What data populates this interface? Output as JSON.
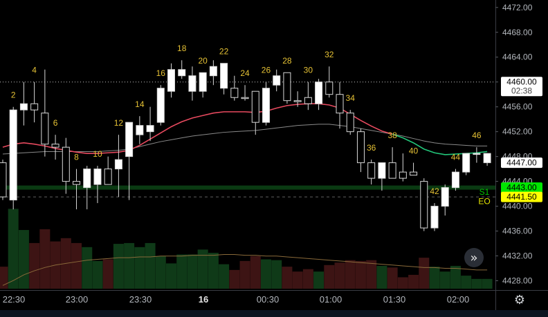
{
  "chart_data": {
    "type": "candlestick",
    "price_scale": {
      "ticks": [
        "4472.00",
        "4468.00",
        "4464.00",
        "4460.00",
        "4456.00",
        "4452.00",
        "4448.00",
        "4444.00",
        "4440.00",
        "4436.00",
        "4432.00",
        "4428.00"
      ],
      "range": [
        4426.5,
        4473.2
      ]
    },
    "time_axis": {
      "labels": [
        "22:30",
        "23:00",
        "23:30",
        "16",
        "00:30",
        "01:00",
        "01:30",
        "02:00"
      ],
      "bold_label": "16"
    },
    "price_badges": [
      {
        "value": "4460.00",
        "sub": "02:38",
        "color": "#ffffff",
        "text": "#000000"
      },
      {
        "value": "4447.00",
        "color": "#ffffff",
        "text": "#000000"
      },
      {
        "value": "4443.00",
        "color": "#00e600",
        "text": "#000000"
      },
      {
        "value": "4441.50",
        "color": "#ffff00",
        "text": "#000000"
      }
    ],
    "level_labels": [
      {
        "text": "S1",
        "color": "#00c800",
        "price": 4442.3
      },
      {
        "text": "EO",
        "color": "#e6e600",
        "price": 4440.8
      }
    ],
    "horizontal_lines": [
      {
        "price": 4460.0,
        "style": "dotted",
        "color": "#ffffff"
      },
      {
        "price": 4443.0,
        "style": "band",
        "color": "#0a3a12"
      },
      {
        "price": 4441.5,
        "style": "dashed",
        "color": "#777777"
      }
    ],
    "candles": [
      {
        "n": 1,
        "o": 4441.5,
        "h": 4447.5,
        "l": 4441.0,
        "c": 4447.0,
        "dir": "down"
      },
      {
        "n": 2,
        "o": 4441.0,
        "h": 4456.0,
        "l": 4439.5,
        "c": 4455.5,
        "dir": "up"
      },
      {
        "n": 3,
        "o": 4455.5,
        "h": 4460.0,
        "l": 4453.0,
        "c": 4456.5,
        "dir": "up"
      },
      {
        "n": 4,
        "o": 4456.5,
        "h": 4460.0,
        "l": 4453.5,
        "c": 4455.5,
        "dir": "down"
      },
      {
        "n": 5,
        "o": 4455.0,
        "h": 4462.0,
        "l": 4448.0,
        "c": 4450.0,
        "dir": "down"
      },
      {
        "n": 6,
        "o": 4450.0,
        "h": 4451.5,
        "l": 4447.5,
        "c": 4449.5,
        "dir": "down"
      },
      {
        "n": 7,
        "o": 4449.5,
        "h": 4451.0,
        "l": 4442.0,
        "c": 4444.0,
        "dir": "down"
      },
      {
        "n": 8,
        "o": 4444.0,
        "h": 4446.0,
        "l": 4439.5,
        "c": 4443.5,
        "dir": "down"
      },
      {
        "n": 9,
        "o": 4443.0,
        "h": 4446.5,
        "l": 4439.5,
        "c": 4446.0,
        "dir": "up"
      },
      {
        "n": 10,
        "o": 4443.5,
        "h": 4446.5,
        "l": 4440.5,
        "c": 4446.0,
        "dir": "up"
      },
      {
        "n": 11,
        "o": 4446.0,
        "h": 4448.0,
        "l": 4443.5,
        "c": 4443.5,
        "dir": "down"
      },
      {
        "n": 12,
        "o": 4446.0,
        "h": 4451.5,
        "l": 4441.5,
        "c": 4447.5,
        "dir": "up"
      },
      {
        "n": 13,
        "o": 4448.0,
        "h": 4453.5,
        "l": 4441.0,
        "c": 4453.5,
        "dir": "up"
      },
      {
        "n": 14,
        "o": 4451.5,
        "h": 4454.5,
        "l": 4450.0,
        "c": 4453.0,
        "dir": "up"
      },
      {
        "n": 15,
        "o": 4452.0,
        "h": 4456.0,
        "l": 4450.5,
        "c": 4453.0,
        "dir": "up"
      },
      {
        "n": 16,
        "o": 4453.5,
        "h": 4459.5,
        "l": 4453.0,
        "c": 4459.0,
        "dir": "up"
      },
      {
        "n": 17,
        "o": 4458.5,
        "h": 4463.0,
        "l": 4457.5,
        "c": 4462.0,
        "dir": "up"
      },
      {
        "n": 18,
        "o": 4462.0,
        "h": 4463.5,
        "l": 4460.5,
        "c": 4461.0,
        "dir": "up"
      },
      {
        "n": 19,
        "o": 4458.5,
        "h": 4462.5,
        "l": 4457.0,
        "c": 4461.0,
        "dir": "up"
      },
      {
        "n": 20,
        "o": 4458.5,
        "h": 4461.5,
        "l": 4457.5,
        "c": 4461.5,
        "dir": "up"
      },
      {
        "n": 21,
        "o": 4461.0,
        "h": 4463.5,
        "l": 4459.5,
        "c": 4462.5,
        "dir": "up"
      },
      {
        "n": 22,
        "o": 4459.0,
        "h": 4463.0,
        "l": 4458.0,
        "c": 4463.0,
        "dir": "up"
      },
      {
        "n": 23,
        "o": 4459.0,
        "h": 4461.0,
        "l": 4457.0,
        "c": 4457.5,
        "dir": "down"
      },
      {
        "n": 24,
        "o": 4457.5,
        "h": 4459.5,
        "l": 4457.0,
        "c": 4457.5,
        "dir": "down"
      },
      {
        "n": 25,
        "o": 4458.5,
        "h": 4458.5,
        "l": 4451.5,
        "c": 4453.5,
        "dir": "down"
      },
      {
        "n": 26,
        "o": 4453.5,
        "h": 4460.0,
        "l": 4453.0,
        "c": 4459.0,
        "dir": "up"
      },
      {
        "n": 27,
        "o": 4459.5,
        "h": 4462.0,
        "l": 4458.5,
        "c": 4461.0,
        "dir": "up"
      },
      {
        "n": 28,
        "o": 4461.5,
        "h": 4461.5,
        "l": 4456.5,
        "c": 4457.0,
        "dir": "down"
      },
      {
        "n": 29,
        "o": 4457.0,
        "h": 4458.5,
        "l": 4456.0,
        "c": 4457.0,
        "dir": "down"
      },
      {
        "n": 30,
        "o": 4457.5,
        "h": 4460.0,
        "l": 4455.5,
        "c": 4456.5,
        "dir": "down"
      },
      {
        "n": 31,
        "o": 4456.5,
        "h": 4460.5,
        "l": 4455.5,
        "c": 4460.0,
        "dir": "up"
      },
      {
        "n": 32,
        "o": 4460.0,
        "h": 4462.5,
        "l": 4457.5,
        "c": 4458.0,
        "dir": "down"
      },
      {
        "n": 33,
        "o": 4458.0,
        "h": 4460.0,
        "l": 4452.5,
        "c": 4455.0,
        "dir": "down"
      },
      {
        "n": 34,
        "o": 4455.0,
        "h": 4455.5,
        "l": 4451.5,
        "c": 4452.0,
        "dir": "down"
      },
      {
        "n": 35,
        "o": 4452.0,
        "h": 4452.5,
        "l": 4445.5,
        "c": 4447.0,
        "dir": "down"
      },
      {
        "n": 36,
        "o": 4447.0,
        "h": 4447.5,
        "l": 4443.5,
        "c": 4444.5,
        "dir": "down"
      },
      {
        "n": 37,
        "o": 4444.5,
        "h": 4447.0,
        "l": 4442.5,
        "c": 4447.0,
        "dir": "up"
      },
      {
        "n": 38,
        "o": 4447.0,
        "h": 4449.5,
        "l": 4444.5,
        "c": 4444.5,
        "dir": "down"
      },
      {
        "n": 39,
        "o": 4444.5,
        "h": 4448.5,
        "l": 4444.0,
        "c": 4445.5,
        "dir": "down"
      },
      {
        "n": 40,
        "o": 4445.5,
        "h": 4447.0,
        "l": 4445.0,
        "c": 4445.0,
        "dir": "down"
      },
      {
        "n": 41,
        "o": 4444.0,
        "h": 4444.5,
        "l": 4436.0,
        "c": 4436.5,
        "dir": "down"
      },
      {
        "n": 42,
        "o": 4436.5,
        "h": 4440.5,
        "l": 4436.0,
        "c": 4440.0,
        "dir": "up"
      },
      {
        "n": 43,
        "o": 4440.0,
        "h": 4443.5,
        "l": 4438.5,
        "c": 4443.0,
        "dir": "up"
      },
      {
        "n": 44,
        "o": 4443.0,
        "h": 4446.0,
        "l": 4442.5,
        "c": 4445.5,
        "dir": "up"
      },
      {
        "n": 45,
        "o": 4445.5,
        "h": 4448.5,
        "l": 4445.0,
        "c": 4448.5,
        "dir": "up"
      },
      {
        "n": 46,
        "o": 4448.5,
        "h": 4449.5,
        "l": 4447.0,
        "c": 4448.5,
        "dir": "up"
      },
      {
        "n": 47,
        "o": 4447.0,
        "h": 4448.5,
        "l": 4446.5,
        "c": 4448.5,
        "dir": "up"
      }
    ],
    "bar_numbers": [
      {
        "n": 2,
        "label": "2"
      },
      {
        "n": 4,
        "label": "4"
      },
      {
        "n": 6,
        "label": "6"
      },
      {
        "n": 8,
        "label": "8"
      },
      {
        "n": 10,
        "label": "10"
      },
      {
        "n": 12,
        "label": "12"
      },
      {
        "n": 14,
        "label": "14"
      },
      {
        "n": 16,
        "label": "16"
      },
      {
        "n": 18,
        "label": "18"
      },
      {
        "n": 20,
        "label": "20"
      },
      {
        "n": 22,
        "label": "22"
      },
      {
        "n": 24,
        "label": "24"
      },
      {
        "n": 26,
        "label": "26"
      },
      {
        "n": 28,
        "label": "28"
      },
      {
        "n": 30,
        "label": "30"
      },
      {
        "n": 32,
        "label": "32"
      },
      {
        "n": 34,
        "label": "34"
      },
      {
        "n": 36,
        "label": "36"
      },
      {
        "n": 38,
        "label": "38"
      },
      {
        "n": 40,
        "label": "40"
      },
      {
        "n": 42,
        "label": "42"
      },
      {
        "n": 44,
        "label": "44"
      },
      {
        "n": 46,
        "label": "46"
      }
    ],
    "moving_averages": [
      {
        "name": "fast",
        "colors": {
          "down": "#e84a5f",
          "up": "#22c77a"
        },
        "values": [
          4449.5,
          4450.0,
          4450.2,
          4450.0,
          4449.7,
          4449.3,
          4449.0,
          4448.7,
          4448.5,
          4448.5,
          4448.6,
          4448.7,
          4449.0,
          4449.8,
          4450.8,
          4451.8,
          4452.8,
          4453.6,
          4454.2,
          4454.6,
          4455.0,
          4455.2,
          4455.2,
          4455.2,
          4455.1,
          4455.3,
          4455.8,
          4456.2,
          4456.4,
          4456.5,
          4456.5,
          4456.3,
          4455.8,
          4454.8,
          4453.8,
          4452.9,
          4452.1,
          4451.6,
          4451.0,
          4450.2,
          4449.2,
          4448.6,
          4448.3,
          4448.4,
          4448.5,
          4448.6,
          4448.8
        ],
        "up_from": 38
      },
      {
        "name": "slow",
        "colors": {
          "line": "#8a8a8a"
        },
        "values": [
          4448.4,
          4448.5,
          4448.6,
          4448.7,
          4448.8,
          4448.8,
          4448.8,
          4448.8,
          4448.8,
          4448.8,
          4448.9,
          4449.0,
          4449.2,
          4449.6,
          4450.0,
          4450.4,
          4450.7,
          4451.0,
          4451.3,
          4451.5,
          4451.7,
          4451.9,
          4452.0,
          4452.1,
          4452.2,
          4452.4,
          4452.6,
          4452.8,
          4453.0,
          4453.1,
          4453.2,
          4453.2,
          4453.0,
          4452.8,
          4452.5,
          4452.2,
          4451.9,
          4451.6,
          4451.3,
          4450.9,
          4450.5,
          4450.2,
          4450.0,
          4449.9,
          4449.8,
          4449.7,
          4449.7
        ]
      }
    ],
    "volume": {
      "values": [
        0.27,
        0.98,
        0.72,
        0.56,
        0.73,
        0.58,
        0.62,
        0.56,
        0.51,
        0.34,
        0.36,
        0.55,
        0.56,
        0.51,
        0.56,
        0.4,
        0.31,
        0.42,
        0.42,
        0.48,
        0.44,
        0.3,
        0.23,
        0.34,
        0.4,
        0.36,
        0.35,
        0.27,
        0.21,
        0.24,
        0.21,
        0.29,
        0.32,
        0.35,
        0.34,
        0.35,
        0.28,
        0.26,
        0.14,
        0.17,
        0.38,
        0.27,
        0.21,
        0.28,
        0.16,
        0.12,
        0.12
      ],
      "ma": [
        0.04,
        0.1,
        0.17,
        0.22,
        0.26,
        0.29,
        0.31,
        0.33,
        0.35,
        0.36,
        0.37,
        0.38,
        0.38,
        0.39,
        0.39,
        0.4,
        0.4,
        0.4,
        0.41,
        0.41,
        0.41,
        0.42,
        0.42,
        0.41,
        0.41,
        0.4,
        0.4,
        0.39,
        0.38,
        0.37,
        0.36,
        0.35,
        0.34,
        0.33,
        0.32,
        0.31,
        0.3,
        0.29,
        0.28,
        0.27,
        0.26,
        0.26,
        0.25,
        0.25,
        0.24,
        0.23,
        0.23
      ]
    }
  },
  "controls": {
    "expand_glyph": "»",
    "settings_glyph": "⚙"
  }
}
